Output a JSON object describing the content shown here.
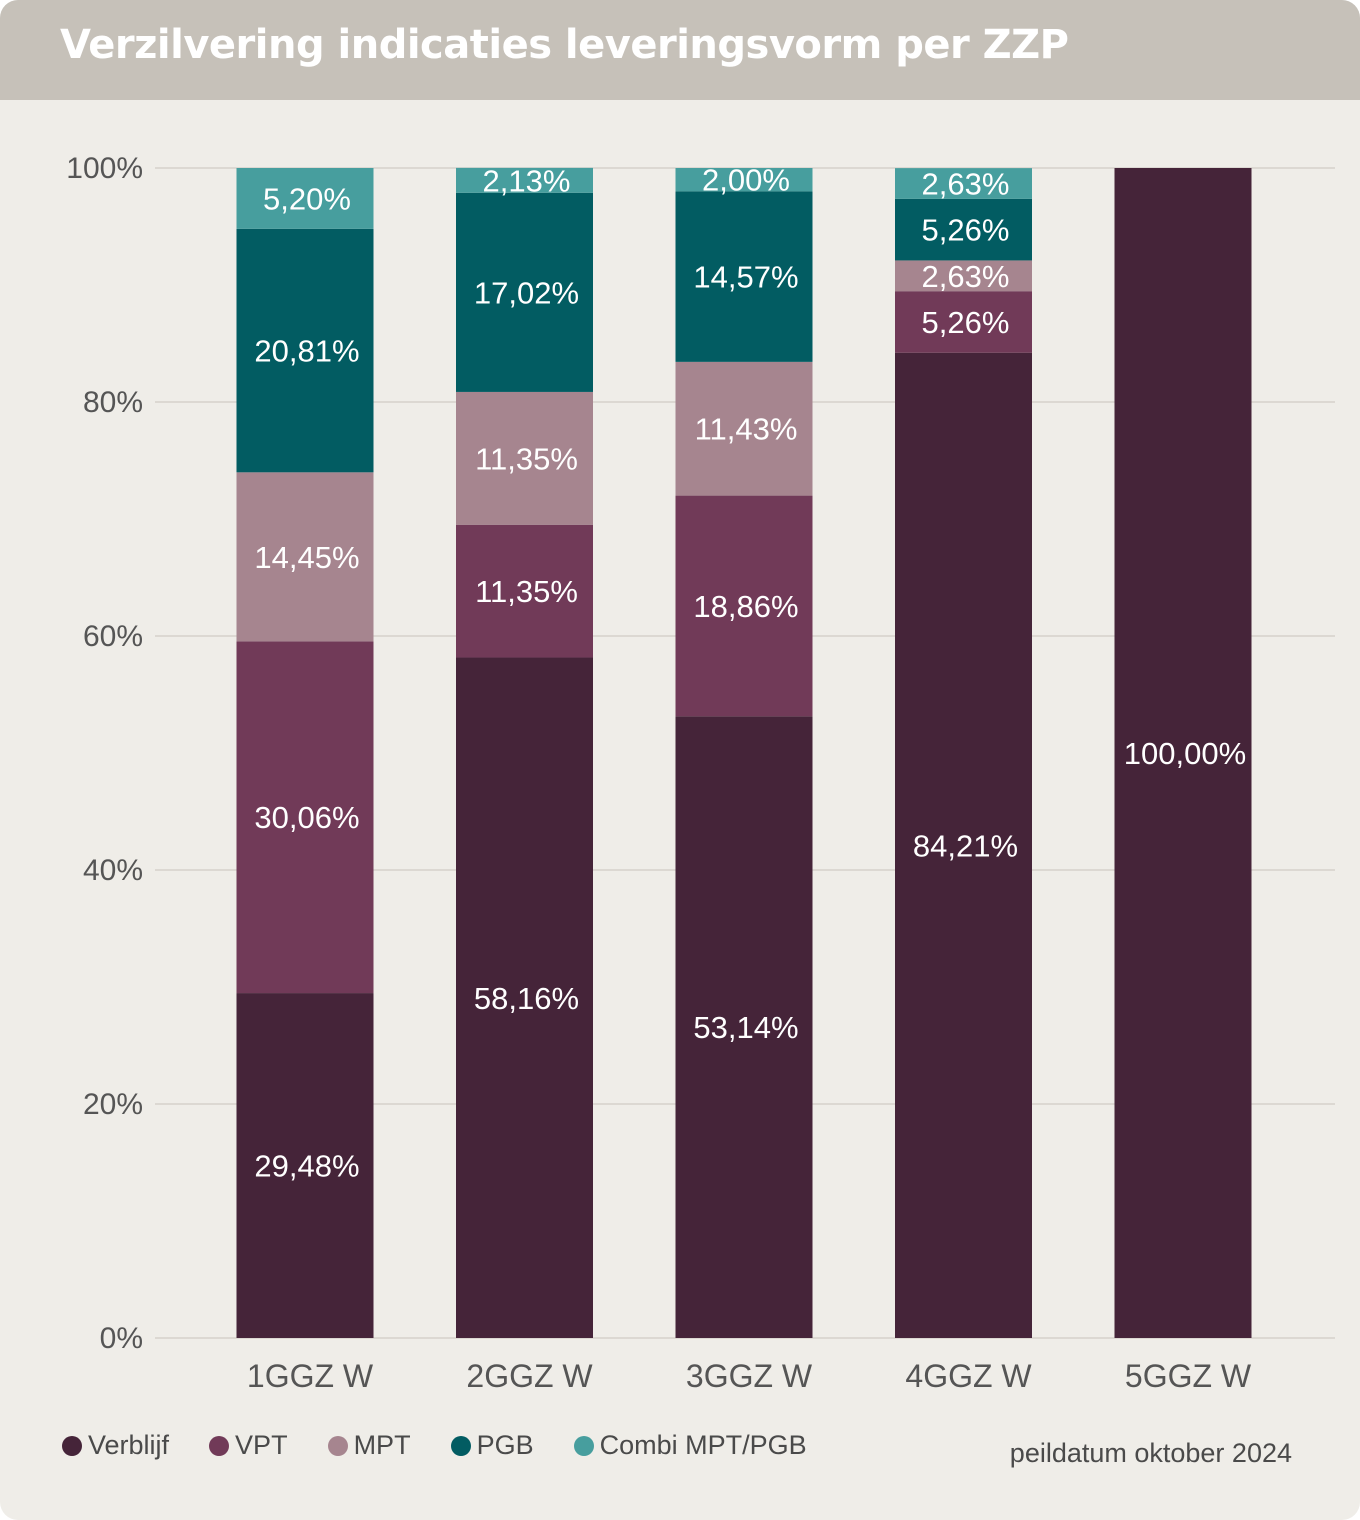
{
  "title": "Verzilvering indicaties leveringsvorm per ZZP",
  "footnote": "peildatum oktober 2024",
  "chart_data": {
    "type": "bar",
    "stacked": true,
    "title": "Verzilvering indicaties leveringsvorm per ZZP",
    "xlabel": "",
    "ylabel": "",
    "ylim": [
      0,
      100
    ],
    "yticks": [
      "0%",
      "20%",
      "40%",
      "60%",
      "80%",
      "100%"
    ],
    "grid": true,
    "legend_position": "bottom-left",
    "categories": [
      "1GGZ W",
      "2GGZ W",
      "3GGZ W",
      "4GGZ W",
      "5GGZ W"
    ],
    "series": [
      {
        "name": "Verblijf",
        "color": "#452439",
        "values": [
          29.48,
          58.16,
          53.14,
          84.21,
          100.0
        ],
        "labels": [
          "29,48%",
          "58,16%",
          "53,14%",
          "84,21%",
          "100,00%"
        ]
      },
      {
        "name": "VPT",
        "color": "#713a58",
        "values": [
          30.06,
          11.35,
          18.86,
          5.26,
          0
        ],
        "labels": [
          "30,06%",
          "11,35%",
          "18,86%",
          "5,26%",
          ""
        ]
      },
      {
        "name": "MPT",
        "color": "#a6858f",
        "values": [
          14.45,
          11.35,
          11.43,
          2.63,
          0
        ],
        "labels": [
          "14,45%",
          "11,35%",
          "11,43%",
          "2,63%",
          ""
        ]
      },
      {
        "name": "PGB",
        "color": "#025c62",
        "values": [
          20.81,
          17.02,
          14.57,
          5.26,
          0
        ],
        "labels": [
          "20,81%",
          "17,02%",
          "14,57%",
          "5,26%",
          ""
        ]
      },
      {
        "name": "Combi MPT/PGB",
        "color": "#479e9e",
        "values": [
          5.2,
          2.13,
          2.0,
          2.63,
          0
        ],
        "labels": [
          "5,20%",
          "2,13%",
          "2,00%",
          "2,63%",
          ""
        ]
      }
    ]
  }
}
